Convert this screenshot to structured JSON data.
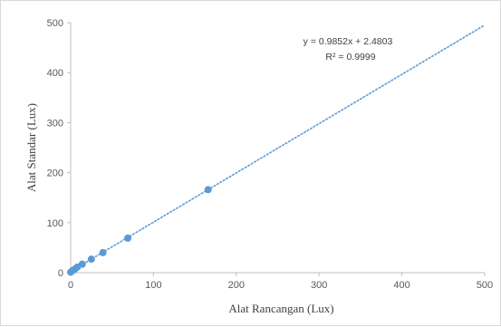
{
  "chart_data": {
    "type": "scatter",
    "title": "",
    "xlabel": "Alat Rancangan (Lux)",
    "ylabel": "Alat Standar (Lux)",
    "xlim": [
      0,
      500
    ],
    "ylim": [
      0,
      500
    ],
    "x_ticks": [
      "0",
      "100",
      "200",
      "300",
      "400",
      "500"
    ],
    "y_ticks": [
      "0",
      "100",
      "200",
      "300",
      "400",
      "500"
    ],
    "grid": false,
    "legend": "none",
    "series": [
      {
        "points": [
          {
            "x": 0,
            "y": 1
          },
          {
            "x": 2,
            "y": 4
          },
          {
            "x": 5,
            "y": 7
          },
          {
            "x": 8,
            "y": 11
          },
          {
            "x": 14,
            "y": 17
          },
          {
            "x": 25,
            "y": 27
          },
          {
            "x": 39,
            "y": 40
          },
          {
            "x": 69,
            "y": 69
          },
          {
            "x": 166,
            "y": 166
          }
        ],
        "color": "#5b9bd5"
      }
    ],
    "trendline": {
      "slope": 0.9852,
      "intercept": 2.4803,
      "x_range": [
        0,
        500
      ],
      "style": "dotted",
      "color": "#5b9bd5"
    },
    "annotations": {
      "equation": "y = 0.9852x + 2.4803",
      "r_squared": "R² = 0.9999"
    }
  }
}
